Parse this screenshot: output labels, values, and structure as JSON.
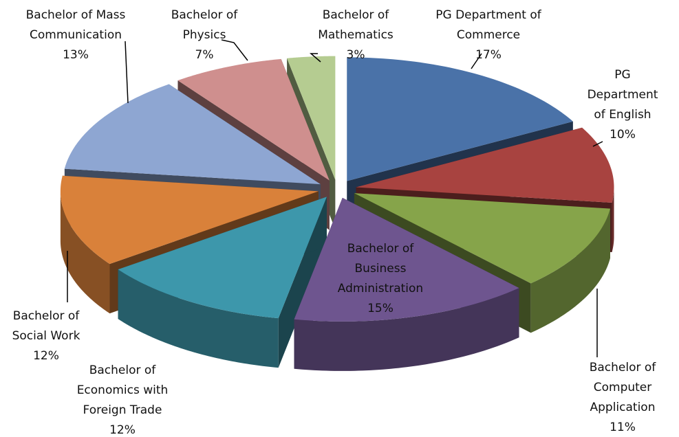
{
  "chart_data": {
    "type": "pie",
    "categories": [
      "PG Department of Commerce",
      "PG Department of English",
      "Bachelor of Computer Application",
      "Bachelor of Business Administration",
      "Bachelor of Economics with Foreign Trade",
      "Bachelor of Social Work",
      "Bachelor of Mass Communication",
      "Bachelor of Physics",
      "Bachelor of Mathematics"
    ],
    "values": [
      17,
      10,
      11,
      15,
      12,
      12,
      13,
      7,
      3
    ],
    "value_labels": [
      "17%",
      "10%",
      "11%",
      "15%",
      "12%",
      "12%",
      "13%",
      "7%",
      "3%"
    ],
    "colors": [
      "#4a72a8",
      "#a84340",
      "#86a44a",
      "#6e558f",
      "#3d97ab",
      "#d9813a",
      "#8ea6d2",
      "#cf8f8e",
      "#b5cc91"
    ]
  }
}
